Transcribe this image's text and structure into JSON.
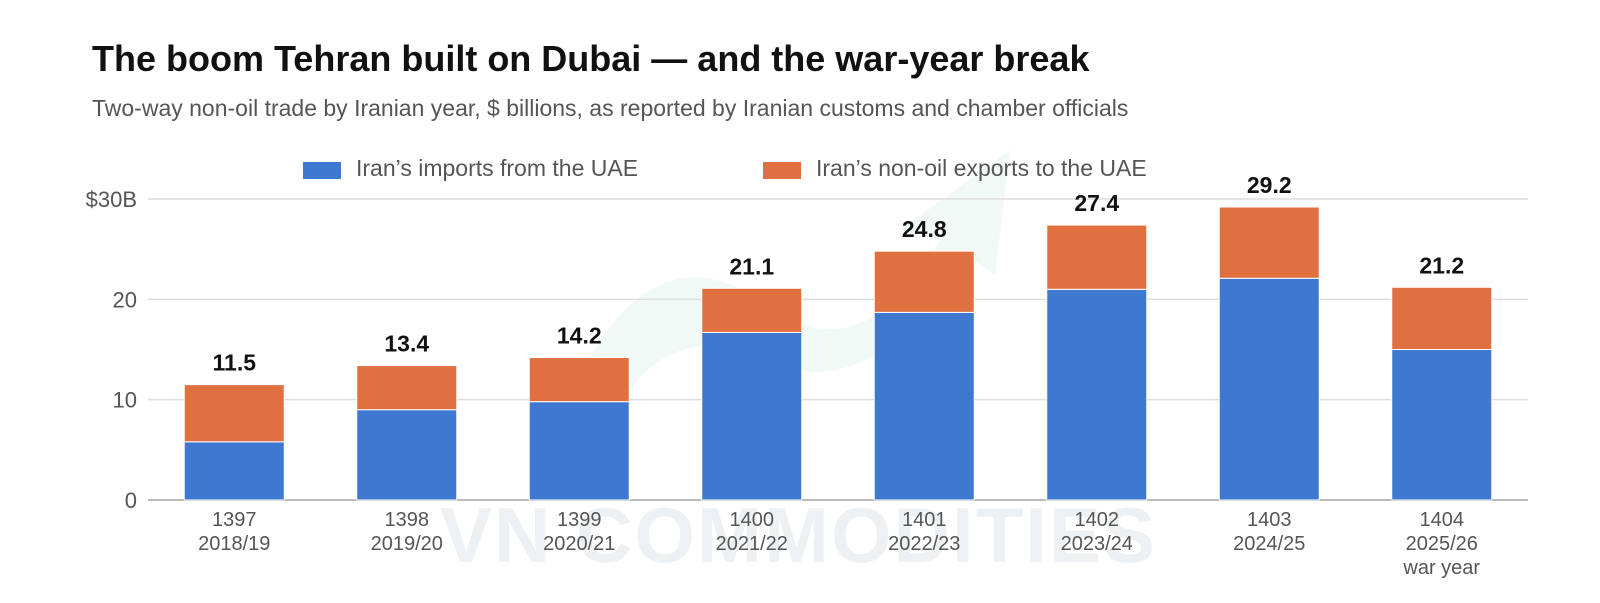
{
  "title": "The boom Tehran built on Dubai — and the war-year break",
  "subtitle": "Two-way non-oil trade by Iranian year, $ billions, as reported by Iranian customs and chamber officials",
  "watermark": "VN COMMODITIES",
  "chart_data": {
    "type": "bar",
    "stacked": true,
    "categories": [
      [
        "1397",
        "2018/19"
      ],
      [
        "1398",
        "2019/20"
      ],
      [
        "1399",
        "2020/21"
      ],
      [
        "1400",
        "2021/22"
      ],
      [
        "1401",
        "2022/23"
      ],
      [
        "1402",
        "2023/24"
      ],
      [
        "1403",
        "2024/25"
      ],
      [
        "1404",
        "2025/26",
        "war year"
      ]
    ],
    "series": [
      {
        "name": "Iran’s imports from the UAE",
        "color": "#3e78d0",
        "values": [
          5.8,
          9.0,
          9.8,
          16.7,
          18.7,
          21.0,
          22.1,
          15.0
        ]
      },
      {
        "name": "Iran’s non-oil exports to the UAE",
        "color": "#e07040",
        "values": [
          5.7,
          4.4,
          4.4,
          4.4,
          6.1,
          6.4,
          7.1,
          6.2
        ]
      }
    ],
    "totals": [
      "11.5",
      "13.4",
      "14.2",
      "21.1",
      "24.8",
      "27.4",
      "29.2",
      "21.2"
    ],
    "ylim": [
      0,
      30
    ],
    "yticks": [
      {
        "value": 0,
        "label": "0"
      },
      {
        "value": 10,
        "label": "10"
      },
      {
        "value": 20,
        "label": "20"
      },
      {
        "value": 30,
        "label": "$30B"
      }
    ],
    "grid": true,
    "legend_position": "top"
  }
}
